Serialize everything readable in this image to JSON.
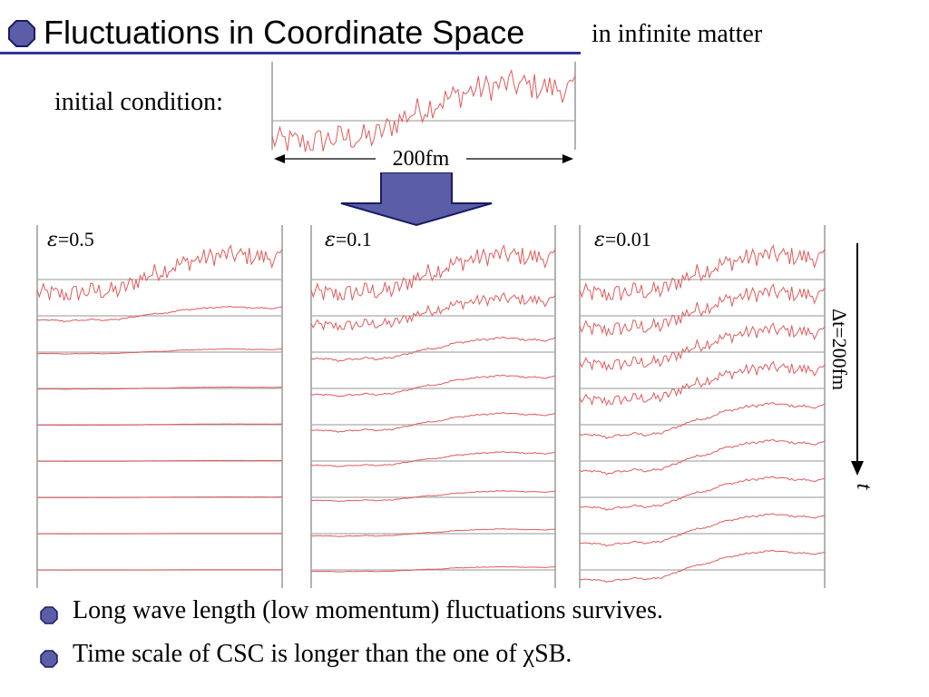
{
  "header": {
    "title": "Fluctuations in Coordinate Space",
    "subtitle": "in infinite matter"
  },
  "initial": {
    "label": "initial condition:",
    "width_label": "200fm"
  },
  "time": {
    "interval_label": "Δt=200fm",
    "axis_label": "t"
  },
  "bullets": [
    "Long wave length (low momentum) fluctuations survives.",
    "Time scale of CSC is longer than the one of χSB."
  ],
  "colors": {
    "accent": "#333399",
    "bullet_fill": "#5b5ea6",
    "curve": "#e05a5a",
    "baseline": "#aaaaaa",
    "frame": "#999999",
    "arrow_fill": "#5b5ea6"
  },
  "chart_data": {
    "type": "line",
    "title": "Fluctuations in Coordinate Space",
    "xlabel": "200fm",
    "ylabel": "",
    "x_range": [
      0,
      200
    ],
    "initial_condition": {
      "name": "initial condition",
      "trend": [
        -0.35,
        -0.4,
        -0.3,
        -0.3,
        0.1,
        0.35,
        0.55,
        0.65,
        0.6,
        0.55
      ],
      "noise_amplitude": 0.25
    },
    "panels": [
      {
        "label": "ε=0.5",
        "epsilon_symbol": "ε",
        "epsilon_value": "=0.5",
        "snapshots": 9,
        "amplitudes": [
          1.0,
          0.35,
          0.12,
          0.05,
          0.03,
          0.02,
          0.015,
          0.01,
          0.008
        ],
        "noise": [
          1.0,
          0.25,
          0.1,
          0.05,
          0.03,
          0.02,
          0.015,
          0.01,
          0.008
        ]
      },
      {
        "label": "ε=0.1",
        "epsilon_symbol": "ε",
        "epsilon_value": "=0.1",
        "snapshots": 9,
        "amplitudes": [
          1.0,
          0.7,
          0.55,
          0.5,
          0.45,
          0.35,
          0.25,
          0.18,
          0.12
        ],
        "noise": [
          1.0,
          0.6,
          0.4,
          0.3,
          0.25,
          0.2,
          0.15,
          0.12,
          0.1
        ]
      },
      {
        "label": "ε=0.01",
        "epsilon_symbol": "ε",
        "epsilon_value": "=0.01",
        "snapshots": 9,
        "amplitudes": [
          1.0,
          0.95,
          0.9,
          0.85,
          0.82,
          0.8,
          0.78,
          0.76,
          0.75
        ],
        "noise": [
          1.0,
          0.85,
          0.7,
          0.6,
          0.5,
          0.45,
          0.4,
          0.35,
          0.3
        ]
      }
    ]
  }
}
